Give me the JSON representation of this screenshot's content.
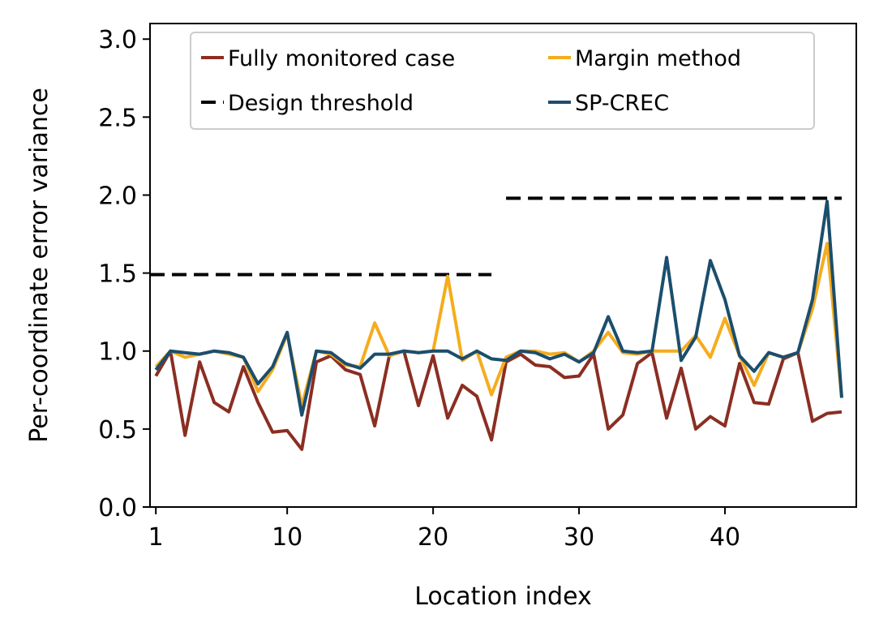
{
  "chart_data": {
    "type": "line",
    "xlabel": "Location index",
    "ylabel": "Per-coordinate error variance",
    "xlim": [
      0.6,
      49
    ],
    "ylim": [
      0,
      3.1
    ],
    "x_ticks": [
      1,
      10,
      20,
      30,
      40
    ],
    "x_tick_labels": [
      "1",
      "10",
      "20",
      "30",
      "40"
    ],
    "y_ticks": [
      0,
      0.5,
      1.0,
      1.5,
      2.0,
      2.5,
      3.0
    ],
    "y_tick_labels": [
      "0.0",
      "0.5",
      "1.0",
      "1.5",
      "2.0",
      "2.5",
      "3.0"
    ],
    "grid": false,
    "legend_position": "top-center",
    "x": [
      1,
      2,
      3,
      4,
      5,
      6,
      7,
      8,
      9,
      10,
      11,
      12,
      13,
      14,
      15,
      16,
      17,
      18,
      19,
      20,
      21,
      22,
      23,
      24,
      25,
      26,
      27,
      28,
      29,
      30,
      31,
      32,
      33,
      34,
      35,
      36,
      37,
      38,
      39,
      40,
      41,
      42,
      43,
      44,
      45,
      46,
      47,
      48
    ],
    "series": [
      {
        "name": "Fully monitored case",
        "color": "#8b2e22",
        "style": "solid",
        "values": [
          0.84,
          1.0,
          0.46,
          0.93,
          0.67,
          0.61,
          0.9,
          0.67,
          0.48,
          0.49,
          0.37,
          0.93,
          0.97,
          0.88,
          0.85,
          0.52,
          0.97,
          1.0,
          0.65,
          0.97,
          0.57,
          0.78,
          0.71,
          0.43,
          0.93,
          0.98,
          0.91,
          0.9,
          0.83,
          0.84,
          0.98,
          0.5,
          0.59,
          0.92,
          0.99,
          0.57,
          0.89,
          0.5,
          0.58,
          0.52,
          0.92,
          0.67,
          0.66,
          0.95,
          0.99,
          0.55,
          0.6,
          0.61
        ]
      },
      {
        "name": "Margin method",
        "color": "#f5ac1e",
        "style": "solid",
        "values": [
          0.9,
          1.0,
          0.96,
          0.98,
          1.0,
          0.98,
          0.96,
          0.74,
          0.88,
          1.11,
          0.65,
          1.0,
          0.98,
          0.91,
          0.9,
          1.18,
          0.97,
          1.0,
          0.99,
          1.0,
          1.48,
          0.94,
          1.0,
          0.72,
          0.96,
          1.0,
          1.0,
          0.98,
          0.99,
          0.93,
          1.0,
          1.12,
          0.99,
          0.98,
          1.0,
          1.0,
          1.0,
          1.1,
          0.96,
          1.21,
          0.97,
          0.78,
          0.99,
          0.96,
          0.99,
          1.27,
          1.69,
          0.7
        ]
      },
      {
        "name": "SP-CREC",
        "color": "#1b4e6e",
        "style": "solid",
        "values": [
          0.88,
          1.0,
          0.99,
          0.98,
          1.0,
          0.99,
          0.96,
          0.79,
          0.9,
          1.12,
          0.59,
          1.0,
          0.99,
          0.92,
          0.89,
          0.98,
          0.98,
          1.0,
          0.99,
          1.0,
          1.0,
          0.95,
          1.0,
          0.95,
          0.94,
          1.0,
          0.99,
          0.95,
          0.98,
          0.93,
          0.99,
          1.22,
          1.0,
          0.99,
          1.0,
          1.6,
          0.94,
          1.09,
          1.58,
          1.33,
          0.97,
          0.87,
          0.99,
          0.96,
          0.99,
          1.33,
          1.96,
          0.7
        ]
      }
    ],
    "thresholds": {
      "name": "Design threshold",
      "color": "#000000",
      "style": "dashed",
      "segments": [
        {
          "x": [
            0.6,
            24
          ],
          "y": 1.49
        },
        {
          "x": [
            25,
            48
          ],
          "y": 1.98
        }
      ]
    },
    "legend": [
      {
        "label": "Fully monitored case",
        "color": "#8b2e22",
        "style": "solid"
      },
      {
        "label": "Margin method",
        "color": "#f5ac1e",
        "style": "solid"
      },
      {
        "label": "Design threshold",
        "color": "#000000",
        "style": "dashed"
      },
      {
        "label": "SP-CREC",
        "color": "#1b4e6e",
        "style": "solid"
      }
    ]
  }
}
